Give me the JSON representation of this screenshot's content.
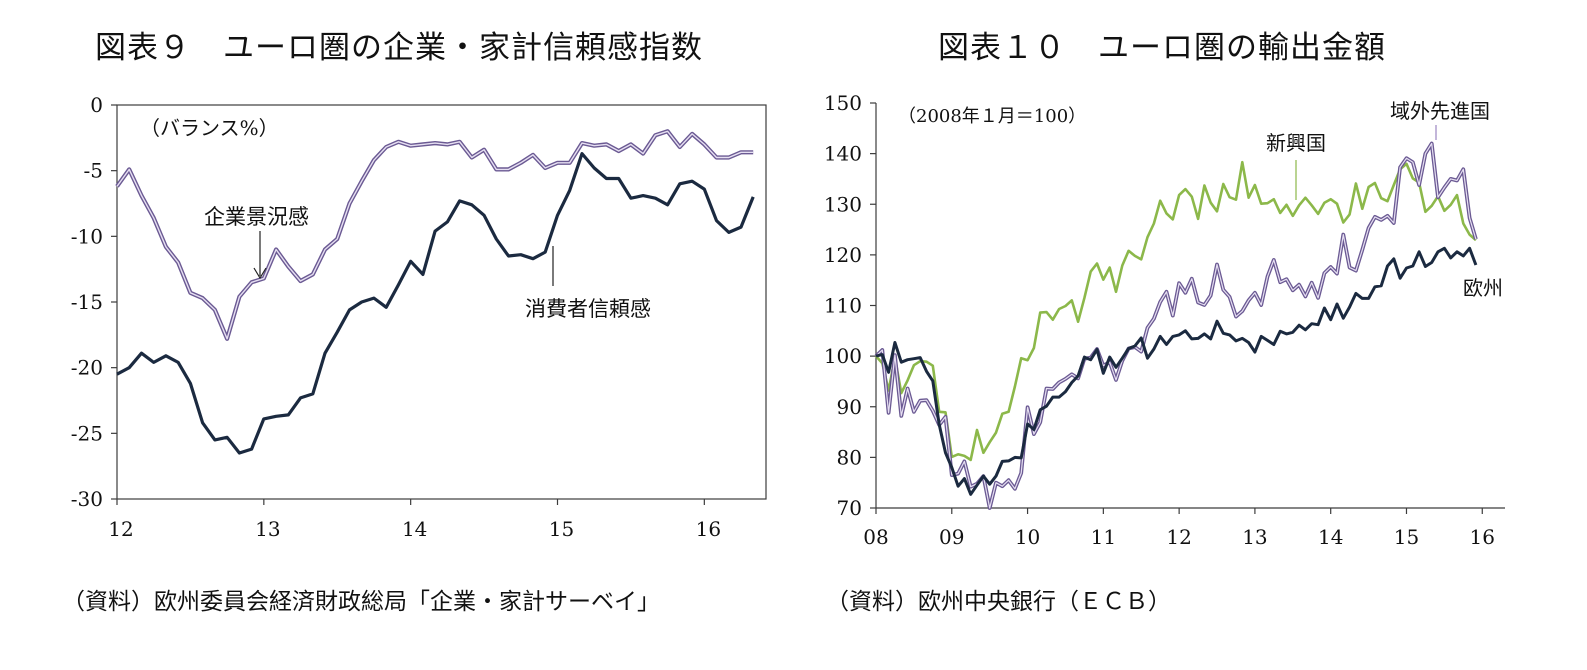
{
  "left_panel": {
    "title": "図表９　ユーロ圏の企業・家計信頼感指数",
    "source": "（資料）欧州委員会経済財政総局「企業・家計サーベイ」"
  },
  "right_panel": {
    "title": "図表１０　ユーロ圏の輸出金額",
    "source": "（資料）欧州中央銀行（ＥＣＢ）"
  },
  "colors": {
    "axis": "#3c3c3c",
    "business": "#9b86c0",
    "consumer": "#1b2a40",
    "emerging": "#8cb84a",
    "advanced": "#9b86c0",
    "europe": "#1b2a40"
  },
  "chart_data": [
    {
      "type": "line",
      "unit_note": "（バランス%）",
      "xlim": [
        12,
        16.42
      ],
      "ylim": [
        -30,
        0
      ],
      "xticks": [
        "12",
        "13",
        "14",
        "15",
        "16"
      ],
      "yticks": [
        "0",
        "-5",
        "-10",
        "-15",
        "-20",
        "-25",
        "-30"
      ],
      "grid": false,
      "series": [
        {
          "name": "企業景況感",
          "color": "#9b86c0",
          "x_start": 12.0,
          "x_step": 0.08333,
          "values": [
            -6.2,
            -4.9,
            -6.9,
            -8.6,
            -10.8,
            -12.0,
            -14.3,
            -14.7,
            -15.6,
            -17.8,
            -14.6,
            -13.5,
            -13.2,
            -11.0,
            -12.3,
            -13.4,
            -12.9,
            -11.0,
            -10.2,
            -7.5,
            -5.8,
            -4.2,
            -3.2,
            -2.8,
            -3.1,
            -3.0,
            -2.9,
            -3.0,
            -2.8,
            -4.0,
            -3.4,
            -4.9,
            -4.9,
            -4.4,
            -3.8,
            -4.8,
            -4.4,
            -4.4,
            -2.9,
            -3.1,
            -3.0,
            -3.5,
            -3.0,
            -3.7,
            -2.3,
            -2.0,
            -3.2,
            -2.2,
            -3.0,
            -4.0,
            -4.0,
            -3.6,
            -3.6
          ]
        },
        {
          "name": "消費者信頼感",
          "color": "#1b2a40",
          "x_start": 12.0,
          "x_step": 0.08333,
          "values": [
            -20.5,
            -20.0,
            -18.9,
            -19.6,
            -19.1,
            -19.6,
            -21.2,
            -24.2,
            -25.5,
            -25.3,
            -26.5,
            -26.2,
            -23.9,
            -23.7,
            -23.6,
            -22.3,
            -22.0,
            -18.9,
            -17.3,
            -15.6,
            -15.0,
            -14.7,
            -15.4,
            -13.7,
            -11.9,
            -12.9,
            -9.6,
            -8.9,
            -7.3,
            -7.6,
            -8.4,
            -10.2,
            -11.5,
            -11.4,
            -11.7,
            -11.2,
            -8.4,
            -6.5,
            -3.7,
            -4.8,
            -5.6,
            -5.6,
            -7.1,
            -6.9,
            -7.1,
            -7.6,
            -6.0,
            -5.8,
            -6.4,
            -8.8,
            -9.7,
            -9.3,
            -7.0
          ]
        }
      ],
      "annotations": [
        {
          "text": "企業景況感",
          "target_series": "企業景況感"
        },
        {
          "text": "消費者信頼感",
          "target_series": "消費者信頼感"
        }
      ]
    },
    {
      "type": "line",
      "unit_note": "（2008年１月＝100）",
      "xlim": [
        8,
        16.3
      ],
      "ylim": [
        70,
        150
      ],
      "xticks": [
        "08",
        "09",
        "10",
        "11",
        "12",
        "13",
        "14",
        "15",
        "16"
      ],
      "yticks": [
        "150",
        "140",
        "130",
        "120",
        "110",
        "100",
        "90",
        "80",
        "70"
      ],
      "grid": false,
      "series": [
        {
          "name": "新興国",
          "color": "#8cb84a",
          "x_start": 8.0,
          "x_step": 0.08333,
          "values": [
            100,
            98.6,
            93.2,
            99.8,
            92.7,
            95.2,
            98.2,
            99.0,
            98.9,
            98.1,
            89.0,
            88.9,
            80.1,
            80.6,
            80.3,
            79.5,
            85.4,
            80.9,
            83.0,
            84.9,
            88.6,
            89.0,
            94.0,
            99.6,
            99.2,
            101.6,
            108.6,
            108.7,
            107.2,
            109.3,
            109.9,
            111.0,
            106.8,
            111.5,
            116.7,
            118.3,
            115.1,
            117.5,
            112.7,
            117.9,
            120.8,
            119.8,
            119.1,
            123.5,
            126.2,
            130.7,
            128.2,
            127.0,
            131.8,
            133.0,
            131.5,
            127.1,
            133.7,
            130.3,
            128.6,
            134.0,
            131.4,
            130.9,
            138.3,
            131.3,
            133.8,
            130.1,
            130.2,
            131.0,
            128.3,
            129.9,
            127.7,
            129.8,
            131.3,
            129.8,
            128.1,
            130.3,
            131.0,
            130.1,
            126.4,
            128.0,
            134.1,
            129.1,
            133.4,
            134.2,
            131.2,
            130.6,
            133.8,
            136.9,
            138.0,
            135.1,
            134.3,
            128.5,
            129.7,
            131.6,
            128.7,
            129.9,
            131.8,
            126.2,
            124.0,
            122.9
          ]
        },
        {
          "name": "域外先進国",
          "color": "#9b86c0",
          "x_start": 8.0,
          "x_step": 0.08333,
          "values": [
            100,
            101.2,
            88.8,
            100.2,
            88.2,
            93.6,
            89.0,
            91.2,
            91.3,
            89.2,
            86.4,
            88.0,
            76.5,
            76.8,
            79.2,
            74.2,
            74.8,
            76.3,
            70.0,
            75.0,
            74.3,
            75.5,
            73.8,
            76.9,
            89.9,
            84.6,
            86.9,
            93.6,
            93.5,
            94.8,
            95.5,
            96.4,
            95.6,
            99.5,
            99.7,
            101.4,
            98.1,
            98.8,
            95.3,
            99.1,
            101.5,
            101.8,
            100.9,
            105.6,
            107.4,
            110.7,
            112.7,
            108.0,
            114.4,
            112.5,
            115.3,
            110.6,
            110.1,
            112.0,
            118.1,
            113.1,
            111.7,
            107.8,
            108.9,
            111.0,
            112.5,
            110.1,
            115.7,
            119.0,
            114.6,
            115.2,
            113.0,
            114.1,
            111.8,
            114.5,
            111.5,
            116.4,
            117.6,
            116.3,
            124.0,
            117.5,
            116.9,
            121.0,
            125.3,
            127.5,
            126.9,
            127.7,
            126.3,
            137.3,
            139.1,
            138.3,
            133.8,
            140.0,
            142.0,
            131.4,
            133.3,
            135.0,
            134.7,
            136.9,
            127.3,
            123.1
          ]
        },
        {
          "name": "欧州",
          "color": "#1b2a40",
          "x_start": 8.0,
          "x_step": 0.08333,
          "values": [
            100,
            100.3,
            96.8,
            102.7,
            98.8,
            99.3,
            99.5,
            99.7,
            97.0,
            95.1,
            86.5,
            80.9,
            78.0,
            74.3,
            75.8,
            72.7,
            74.5,
            76.3,
            74.7,
            76.3,
            79.2,
            79.3,
            80.0,
            79.9,
            86.6,
            85.5,
            89.4,
            90.1,
            91.9,
            91.9,
            93.0,
            94.8,
            96.1,
            99.8,
            99.3,
            101.3,
            96.6,
            99.8,
            97.8,
            99.6,
            101.5,
            102.0,
            103.6,
            99.6,
            101.4,
            103.9,
            102.3,
            103.9,
            104.2,
            105.0,
            103.4,
            103.5,
            104.4,
            103.4,
            106.9,
            104.5,
            104.2,
            103.0,
            103.5,
            102.7,
            100.8,
            103.9,
            103.1,
            102.3,
            104.9,
            104.4,
            104.7,
            106.1,
            105.2,
            106.4,
            106.2,
            109.5,
            107.2,
            110.3,
            107.5,
            109.7,
            112.4,
            111.4,
            111.4,
            113.7,
            113.9,
            117.8,
            119.2,
            115.4,
            117.4,
            117.8,
            120.6,
            117.7,
            118.5,
            120.6,
            121.3,
            119.4,
            120.6,
            119.8,
            121.3,
            118.0
          ]
        }
      ],
      "annotations": [
        {
          "text": "新興国",
          "target_series": "新興国"
        },
        {
          "text": "域外先進国",
          "target_series": "域外先進国"
        },
        {
          "text": "欧州",
          "target_series": "欧州"
        }
      ]
    }
  ]
}
